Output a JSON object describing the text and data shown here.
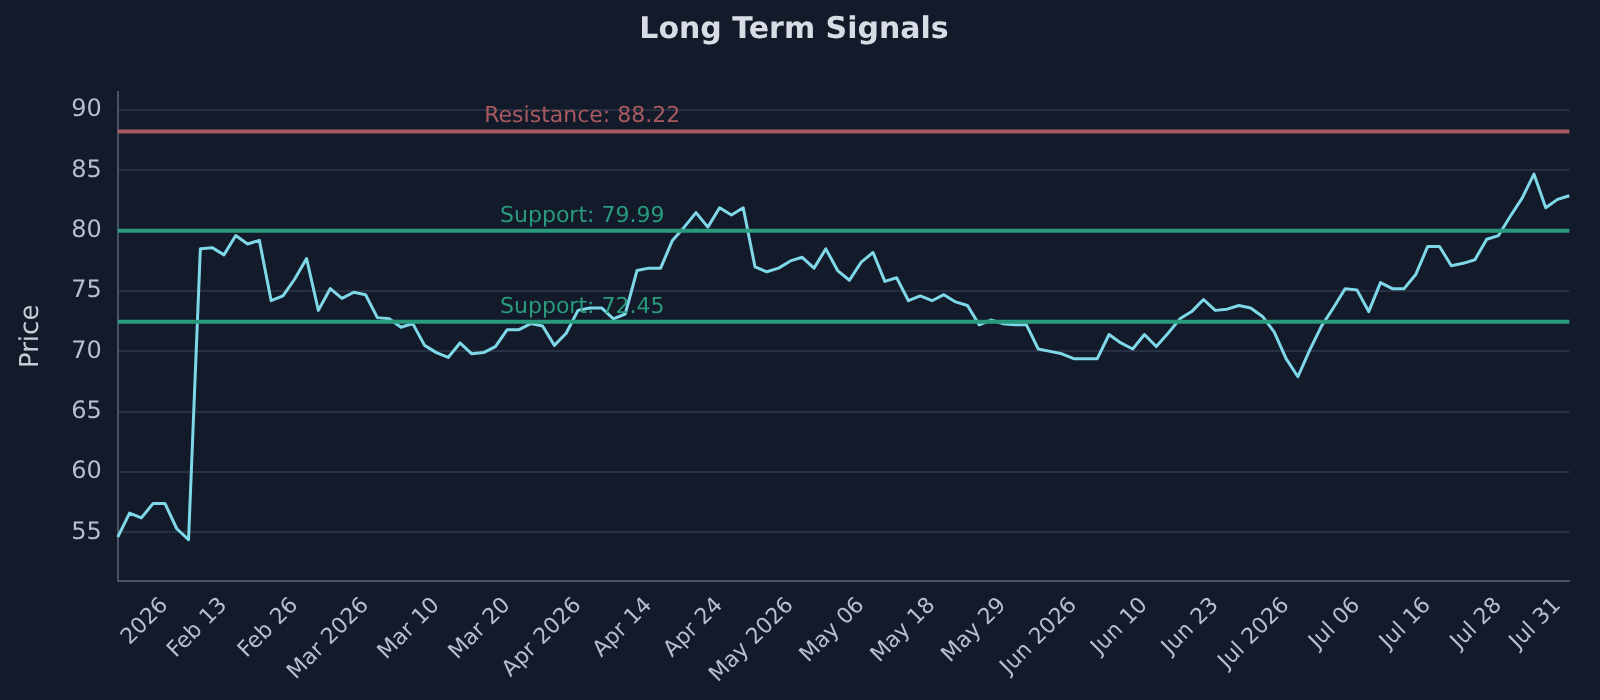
{
  "chart_data": {
    "type": "line",
    "title": "Long Term Signals",
    "ylabel": "Price",
    "categories": [
      null,
      null,
      null,
      null,
      "2026",
      null,
      null,
      null,
      null,
      "Feb 13",
      null,
      null,
      null,
      null,
      null,
      "Feb 26",
      null,
      null,
      null,
      null,
      null,
      "Mar 2026",
      null,
      null,
      null,
      null,
      null,
      "Mar 10",
      null,
      null,
      null,
      null,
      null,
      "Mar 20",
      null,
      null,
      null,
      null,
      null,
      "Apr 2026",
      null,
      null,
      null,
      null,
      null,
      "Apr 14",
      null,
      null,
      null,
      null,
      null,
      "Apr 24",
      null,
      null,
      null,
      null,
      null,
      "May 2026",
      null,
      null,
      null,
      null,
      null,
      "May 06",
      null,
      null,
      null,
      null,
      null,
      "May 18",
      null,
      null,
      null,
      null,
      null,
      "May 29",
      null,
      null,
      null,
      null,
      null,
      "Jun 2026",
      null,
      null,
      null,
      null,
      null,
      "Jun 10",
      null,
      null,
      null,
      null,
      null,
      "Jun 23",
      null,
      null,
      null,
      null,
      null,
      "Jul 2026",
      null,
      null,
      null,
      null,
      null,
      "Jul 06",
      null,
      null,
      null,
      null,
      null,
      "Jul 16",
      null,
      null,
      null,
      null,
      null,
      "Jul 28",
      null,
      null,
      null,
      null,
      "Jul 31",
      null
    ],
    "series": [
      {
        "color": "#7fd8e8",
        "values": [
          54.6,
          56.6,
          56.2,
          57.4,
          57.4,
          55.3,
          54.4,
          78.5,
          78.6,
          78.0,
          79.6,
          78.9,
          79.2,
          74.2,
          74.6,
          76.0,
          77.7,
          73.4,
          75.2,
          74.4,
          74.9,
          74.7,
          72.8,
          72.7,
          72.0,
          72.3,
          70.5,
          69.9,
          69.5,
          70.7,
          69.8,
          69.9,
          70.4,
          71.8,
          71.8,
          72.3,
          72.1,
          70.5,
          71.5,
          73.4,
          73.6,
          73.6,
          72.7,
          73.1,
          76.7,
          76.9,
          76.9,
          79.2,
          80.3,
          81.5,
          80.3,
          81.9,
          81.3,
          81.9,
          77.0,
          76.6,
          76.9,
          77.5,
          77.8,
          76.9,
          78.5,
          76.7,
          75.9,
          77.4,
          78.2,
          75.8,
          76.1,
          74.2,
          74.6,
          74.2,
          74.7,
          74.1,
          73.8,
          72.2,
          72.6,
          72.3,
          72.2,
          72.2,
          70.2,
          70.0,
          69.8,
          69.4,
          69.4,
          69.4,
          71.4,
          70.7,
          70.2,
          71.4,
          70.4,
          71.5,
          72.7,
          73.3,
          74.3,
          73.4,
          73.5,
          73.8,
          73.6,
          72.9,
          71.6,
          69.4,
          67.9,
          70.1,
          72.1,
          73.6,
          75.2,
          75.1,
          73.3,
          75.7,
          75.2,
          75.2,
          76.4,
          78.7,
          78.7,
          77.1,
          77.3,
          77.6,
          79.3,
          79.6,
          81.2,
          82.7,
          84.7,
          81.9,
          82.6,
          82.9
        ]
      }
    ],
    "ylim": [
      51,
      91.5
    ],
    "yticks": [
      55,
      60,
      65,
      70,
      75,
      80,
      85,
      90
    ],
    "ref_lines": [
      {
        "axis": "y",
        "value": 88.22,
        "label": "Resistance: 88.22",
        "color": "#a85a60"
      },
      {
        "axis": "y",
        "value": 79.99,
        "label": "Support: 79.99",
        "color": "#2a9a7e"
      },
      {
        "axis": "y",
        "value": 72.45,
        "label": "Support: 72.45",
        "color": "#2a9a7e"
      }
    ],
    "grid": "y",
    "legend": false,
    "marker": "none",
    "line_style": "solid"
  }
}
